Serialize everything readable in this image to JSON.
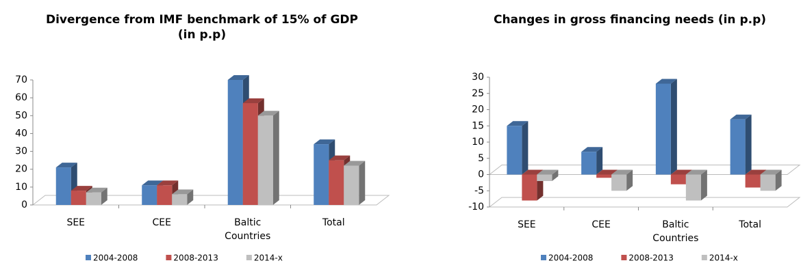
{
  "chart_data": [
    {
      "type": "bar3d",
      "title": "Divergence from IMF benchmark of 15% of GDP (in p.p)",
      "categories": [
        "SEE",
        "CEE",
        "Baltic Countries",
        "Total"
      ],
      "series": [
        {
          "name": "2004-2008",
          "color": "#4f81bd",
          "values": [
            21,
            11,
            70,
            34
          ]
        },
        {
          "name": "2008-2013",
          "color": "#c0504d",
          "values": [
            8,
            11,
            57,
            25
          ]
        },
        {
          "name": "2014-x",
          "color": "#bfbfbf",
          "values": [
            7,
            6,
            50,
            22
          ]
        }
      ],
      "ylim": [
        0,
        70
      ],
      "yticks": [
        0,
        10,
        20,
        30,
        40,
        50,
        60,
        70
      ],
      "legend": "bottom"
    },
    {
      "type": "bar3d",
      "title": "Changes in gross financing needs (in p.p)",
      "categories": [
        "SEE",
        "CEE",
        "Baltic Countries",
        "Total"
      ],
      "series": [
        {
          "name": "2004-2008",
          "color": "#4f81bd",
          "values": [
            15,
            7,
            28,
            17
          ]
        },
        {
          "name": "2008-2013",
          "color": "#c0504d",
          "values": [
            -8,
            -1,
            -3,
            -4
          ]
        },
        {
          "name": "2014-x",
          "color": "#bfbfbf",
          "values": [
            -2,
            -5,
            -8,
            -5
          ]
        }
      ],
      "ylim": [
        -10,
        30
      ],
      "yticks": [
        -10,
        -5,
        0,
        5,
        10,
        15,
        20,
        25,
        30
      ],
      "legend": "bottom"
    }
  ]
}
